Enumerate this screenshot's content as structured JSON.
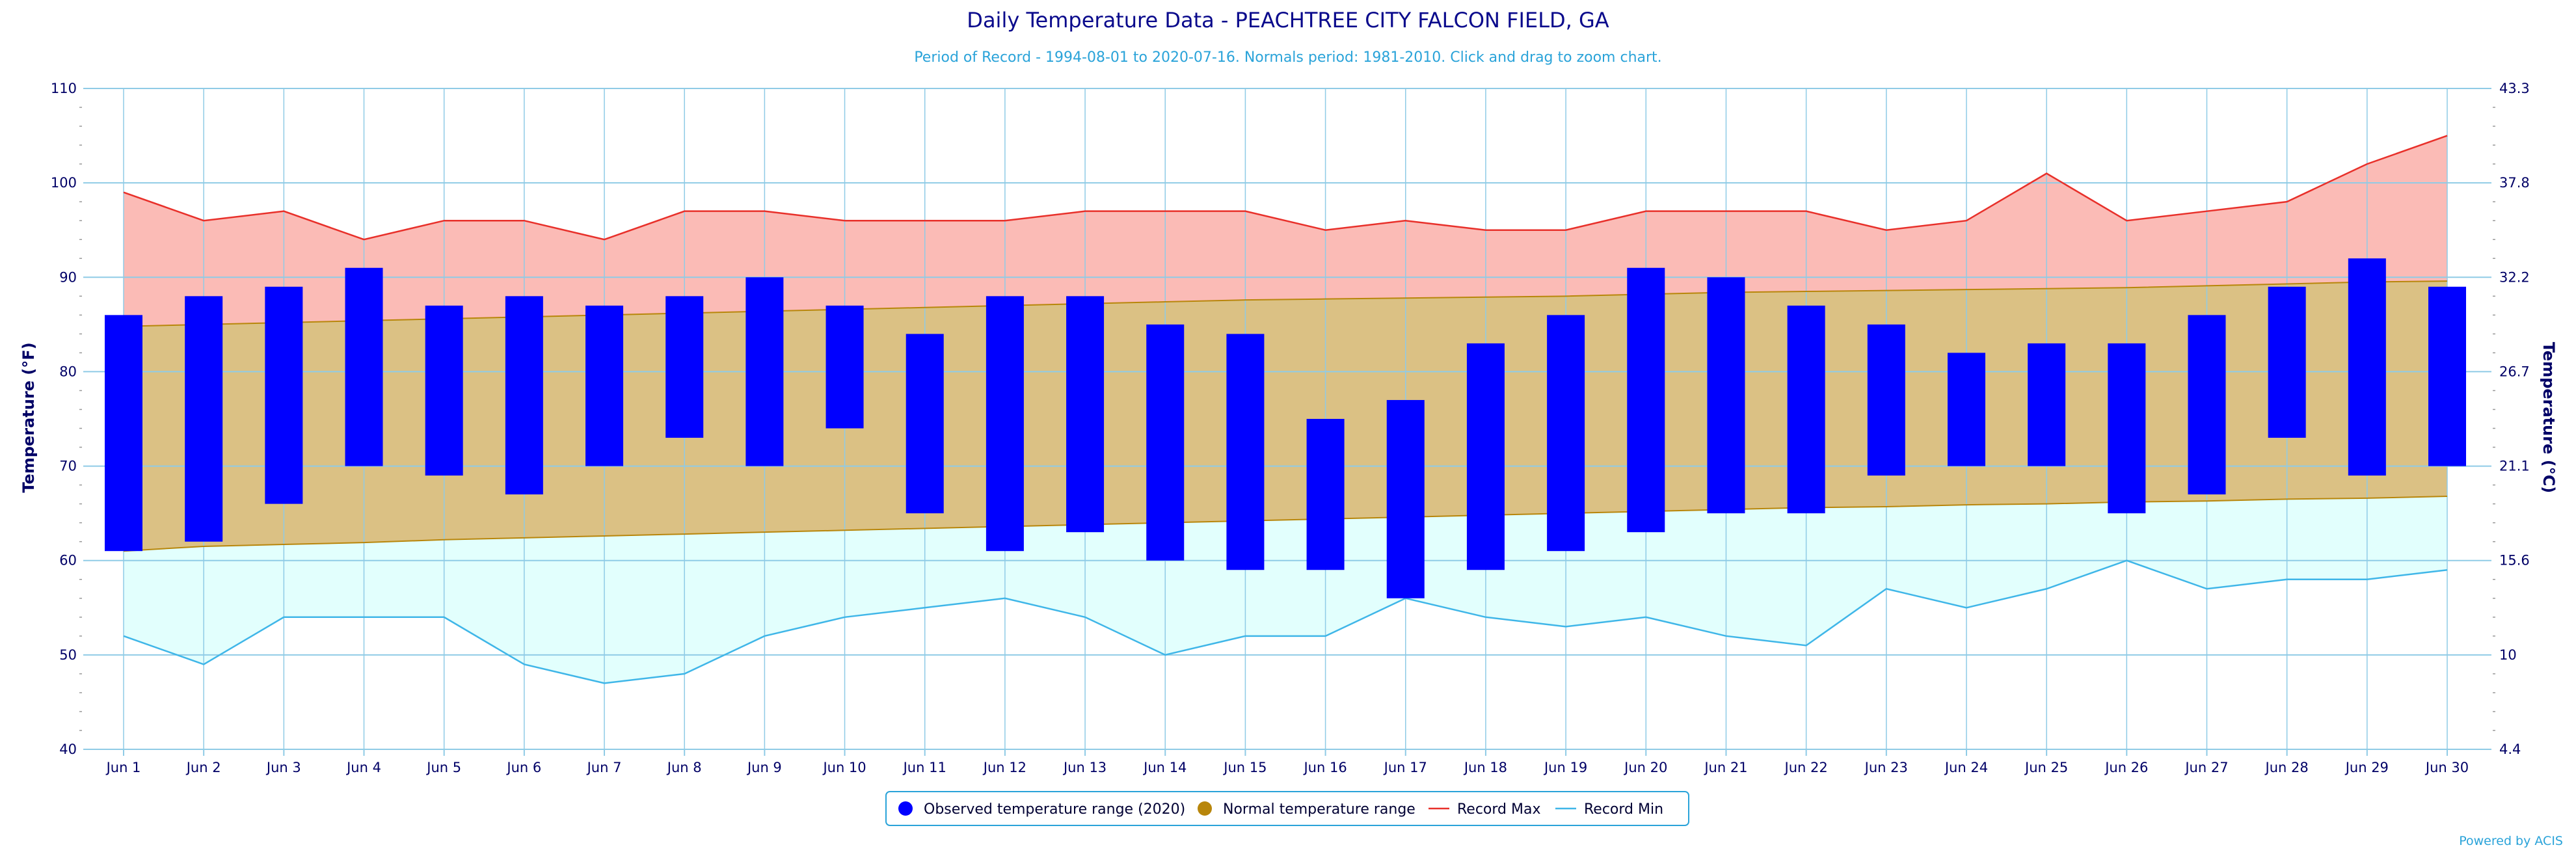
{
  "chart_data": {
    "type": "bar",
    "title": "Daily Temperature Data - PEACHTREE CITY FALCON FIELD, GA",
    "subtitle": "Period of Record - 1994-08-01 to 2020-07-16. Normals period: 1981-2010. Click and drag to zoom chart.",
    "ylabel_left": "Temperature (°F)",
    "ylabel_right": "Temperature (°C)",
    "ylim": [
      40,
      110
    ],
    "yticks_left": [
      "40",
      "50",
      "60",
      "70",
      "80",
      "90",
      "100",
      "110"
    ],
    "yticks_right": [
      "4.4",
      "10",
      "15.6",
      "21.1",
      "26.7",
      "32.2",
      "37.8",
      "43.3"
    ],
    "categories": [
      "Jun 1",
      "Jun 2",
      "Jun 3",
      "Jun 4",
      "Jun 5",
      "Jun 6",
      "Jun 7",
      "Jun 8",
      "Jun 9",
      "Jun 10",
      "Jun 11",
      "Jun 12",
      "Jun 13",
      "Jun 14",
      "Jun 15",
      "Jun 16",
      "Jun 17",
      "Jun 18",
      "Jun 19",
      "Jun 20",
      "Jun 21",
      "Jun 22",
      "Jun 23",
      "Jun 24",
      "Jun 25",
      "Jun 26",
      "Jun 27",
      "Jun 28",
      "Jun 29",
      "Jun 30"
    ],
    "grid": true,
    "legend_position": "bottom-center",
    "series": [
      {
        "name": "Observed temperature range (2020)",
        "kind": "range-bar",
        "color": "#0000ff",
        "low": [
          61,
          62,
          66,
          70,
          69,
          67,
          70,
          73,
          70,
          74,
          65,
          61,
          63,
          60,
          59,
          59,
          56,
          59,
          61,
          63,
          65,
          65,
          69,
          70,
          70,
          65,
          67,
          73,
          69,
          70
        ],
        "high": [
          86,
          88,
          89,
          91,
          87,
          88,
          87,
          88,
          90,
          87,
          84,
          88,
          88,
          85,
          84,
          75,
          77,
          83,
          86,
          91,
          90,
          87,
          85,
          82,
          83,
          83,
          86,
          89,
          92,
          89
        ]
      },
      {
        "name": "Normal temperature range",
        "kind": "range-area",
        "color": "#b8860b",
        "fill": "#dbc184",
        "low": [
          61,
          61.5,
          61.7,
          61.9,
          62.2,
          62.4,
          62.6,
          62.8,
          63,
          63.2,
          63.4,
          63.6,
          63.8,
          64,
          64.2,
          64.4,
          64.6,
          64.8,
          65,
          65.2,
          65.4,
          65.6,
          65.7,
          65.9,
          66,
          66.2,
          66.3,
          66.5,
          66.6,
          66.8
        ],
        "high": [
          84.8,
          85,
          85.2,
          85.4,
          85.6,
          85.8,
          86,
          86.2,
          86.4,
          86.6,
          86.8,
          87,
          87.2,
          87.4,
          87.6,
          87.7,
          87.8,
          87.9,
          88,
          88.2,
          88.4,
          88.5,
          88.6,
          88.7,
          88.8,
          88.9,
          89.1,
          89.3,
          89.5,
          89.6
        ]
      },
      {
        "name": "Record Max",
        "kind": "line",
        "color": "#e8302a",
        "fill": "#fbbbb6",
        "values": [
          99,
          96,
          97,
          94,
          96,
          96,
          94,
          97,
          97,
          96,
          96,
          96,
          97,
          97,
          97,
          95,
          96,
          95,
          95,
          97,
          97,
          97,
          95,
          96,
          101,
          96,
          97,
          98,
          102,
          105
        ]
      },
      {
        "name": "Record Min",
        "kind": "line",
        "color": "#3fb6e8",
        "fill": "#e2fffd",
        "values": [
          52,
          49,
          54,
          54,
          54,
          49,
          47,
          48,
          52,
          54,
          55,
          56,
          54,
          50,
          52,
          52,
          56,
          54,
          53,
          54,
          52,
          51,
          57,
          55,
          57,
          60,
          57,
          58,
          58,
          59
        ]
      }
    ]
  },
  "legend_marker_names": [
    "blue-circle-icon",
    "gold-circle-icon",
    "red-line-icon",
    "cyan-line-icon"
  ],
  "credit": "Powered by ACIS"
}
